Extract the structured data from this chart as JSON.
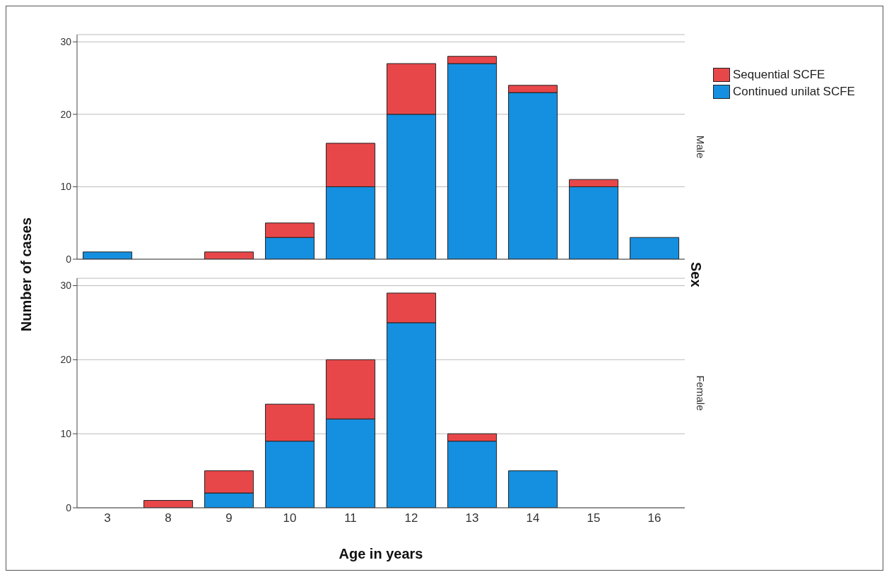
{
  "chart_data": [
    {
      "type": "bar",
      "y2label": "Male",
      "ylabel": "Number of cases",
      "annotations": [
        "Sex"
      ],
      "categories": [
        "3",
        "8",
        "9",
        "10",
        "11",
        "12",
        "13",
        "14",
        "15",
        "16"
      ],
      "stacked": true,
      "series": [
        {
          "name": "Continued unilat SCFE",
          "color": "#1590e0",
          "values": [
            1,
            0,
            0,
            3,
            10,
            20,
            27,
            23,
            10,
            3
          ]
        },
        {
          "name": "Sequential SCFE",
          "color": "#e8474a",
          "values": [
            0,
            0,
            1,
            2,
            6,
            7,
            1,
            1,
            1,
            0
          ]
        }
      ],
      "ylim": [
        0,
        31
      ],
      "yticks": [
        0,
        10,
        20,
        30
      ],
      "grid": "y",
      "legend": "top right",
      "tick_labels": "y"
    },
    {
      "type": "bar",
      "y2label": "Female",
      "xlabel": "Age in years",
      "categories": [
        "3",
        "8",
        "9",
        "10",
        "11",
        "12",
        "13",
        "14",
        "15",
        "16"
      ],
      "stacked": true,
      "series": [
        {
          "color": "#1590e0",
          "values": [
            0,
            0,
            2,
            9,
            12,
            25,
            9,
            5,
            0,
            0
          ]
        },
        {
          "color": "#e8474a",
          "values": [
            0,
            1,
            3,
            5,
            8,
            4,
            1,
            0,
            0,
            0
          ]
        }
      ],
      "ylim": [
        0,
        31
      ],
      "yticks": [
        0,
        10,
        20,
        30
      ],
      "grid": "y"
    }
  ]
}
